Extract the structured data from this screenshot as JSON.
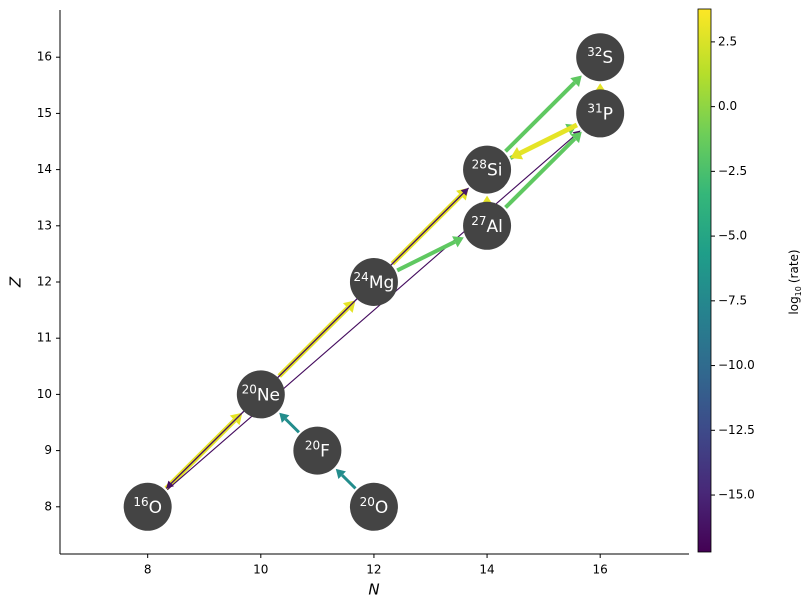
{
  "chart_data": {
    "type": "network",
    "xlabel": "N",
    "ylabel": "Z",
    "xlim": [
      6.45,
      17.57
    ],
    "ylim": [
      7.16,
      16.84
    ],
    "xticks": [
      8,
      10,
      12,
      14,
      16
    ],
    "yticks": [
      8,
      9,
      10,
      11,
      12,
      13,
      14,
      15,
      16
    ],
    "colormap": "viridis",
    "clim": [
      -17.2,
      3.77
    ],
    "cticks": [
      2.5,
      {
        "value": 0,
        "label": "0.0"
      },
      {
        "value": -2.5,
        "label": "−2.5"
      },
      {
        "value": -5,
        "label": "−5.0"
      },
      {
        "value": -7.5,
        "label": "−7.5"
      },
      {
        "value": -10,
        "label": "−10.0"
      },
      {
        "value": -12.5,
        "label": "−12.5"
      },
      {
        "value": -15,
        "label": "−15.0"
      }
    ],
    "colorbar_label": [
      "log",
      "10",
      "(rate)"
    ],
    "nodes": [
      {
        "mass": 16,
        "element": "O",
        "N": 8,
        "Z": 8
      },
      {
        "mass": 20,
        "element": "Ne",
        "N": 10,
        "Z": 10
      },
      {
        "mass": 20,
        "element": "F",
        "N": 11,
        "Z": 9
      },
      {
        "mass": 20,
        "element": "O",
        "N": 12,
        "Z": 8
      },
      {
        "mass": 24,
        "element": "Mg",
        "N": 12,
        "Z": 12
      },
      {
        "mass": 27,
        "element": "Al",
        "N": 14,
        "Z": 13
      },
      {
        "mass": 28,
        "element": "Si",
        "N": 14,
        "Z": 14
      },
      {
        "mass": 31,
        "element": "P",
        "N": 16,
        "Z": 15
      },
      {
        "mass": 32,
        "element": "S",
        "N": 16,
        "Z": 16
      }
    ],
    "edges": [
      {
        "from": [
          8,
          8
        ],
        "to": [
          10,
          10
        ],
        "log_rate": 3.0
      },
      {
        "from": [
          10,
          10
        ],
        "to": [
          12,
          12
        ],
        "log_rate": 3.0
      },
      {
        "from": [
          12,
          12
        ],
        "to": [
          14,
          14
        ],
        "log_rate": 3.0
      },
      {
        "from": [
          14,
          14
        ],
        "to": [
          8,
          8
        ],
        "log_rate": -16.5
      },
      {
        "from": [
          8,
          8
        ],
        "to": [
          14,
          14
        ],
        "log_rate": -16.0
      },
      {
        "from": [
          8,
          8
        ],
        "to": [
          16,
          15
        ],
        "log_rate": -16.5
      },
      {
        "from": [
          12,
          8
        ],
        "to": [
          11,
          9
        ],
        "log_rate": -7.0
      },
      {
        "from": [
          11,
          9
        ],
        "to": [
          10,
          10
        ],
        "log_rate": -7.0
      },
      {
        "from": [
          12,
          12
        ],
        "to": [
          14,
          13
        ],
        "log_rate": -1.5
      },
      {
        "from": [
          14,
          13
        ],
        "to": [
          14,
          14
        ],
        "log_rate": 3.0
      },
      {
        "from": [
          14,
          13
        ],
        "to": [
          16,
          15
        ],
        "log_rate": -1.5
      },
      {
        "from": [
          14,
          14
        ],
        "to": [
          16,
          15
        ],
        "log_rate": -1.5
      },
      {
        "from": [
          16,
          15
        ],
        "to": [
          14,
          14
        ],
        "log_rate": 3.0
      },
      {
        "from": [
          14,
          14
        ],
        "to": [
          16,
          16
        ],
        "log_rate": -1.5
      },
      {
        "from": [
          16,
          15
        ],
        "to": [
          16,
          16
        ],
        "log_rate": 3.0
      }
    ]
  }
}
